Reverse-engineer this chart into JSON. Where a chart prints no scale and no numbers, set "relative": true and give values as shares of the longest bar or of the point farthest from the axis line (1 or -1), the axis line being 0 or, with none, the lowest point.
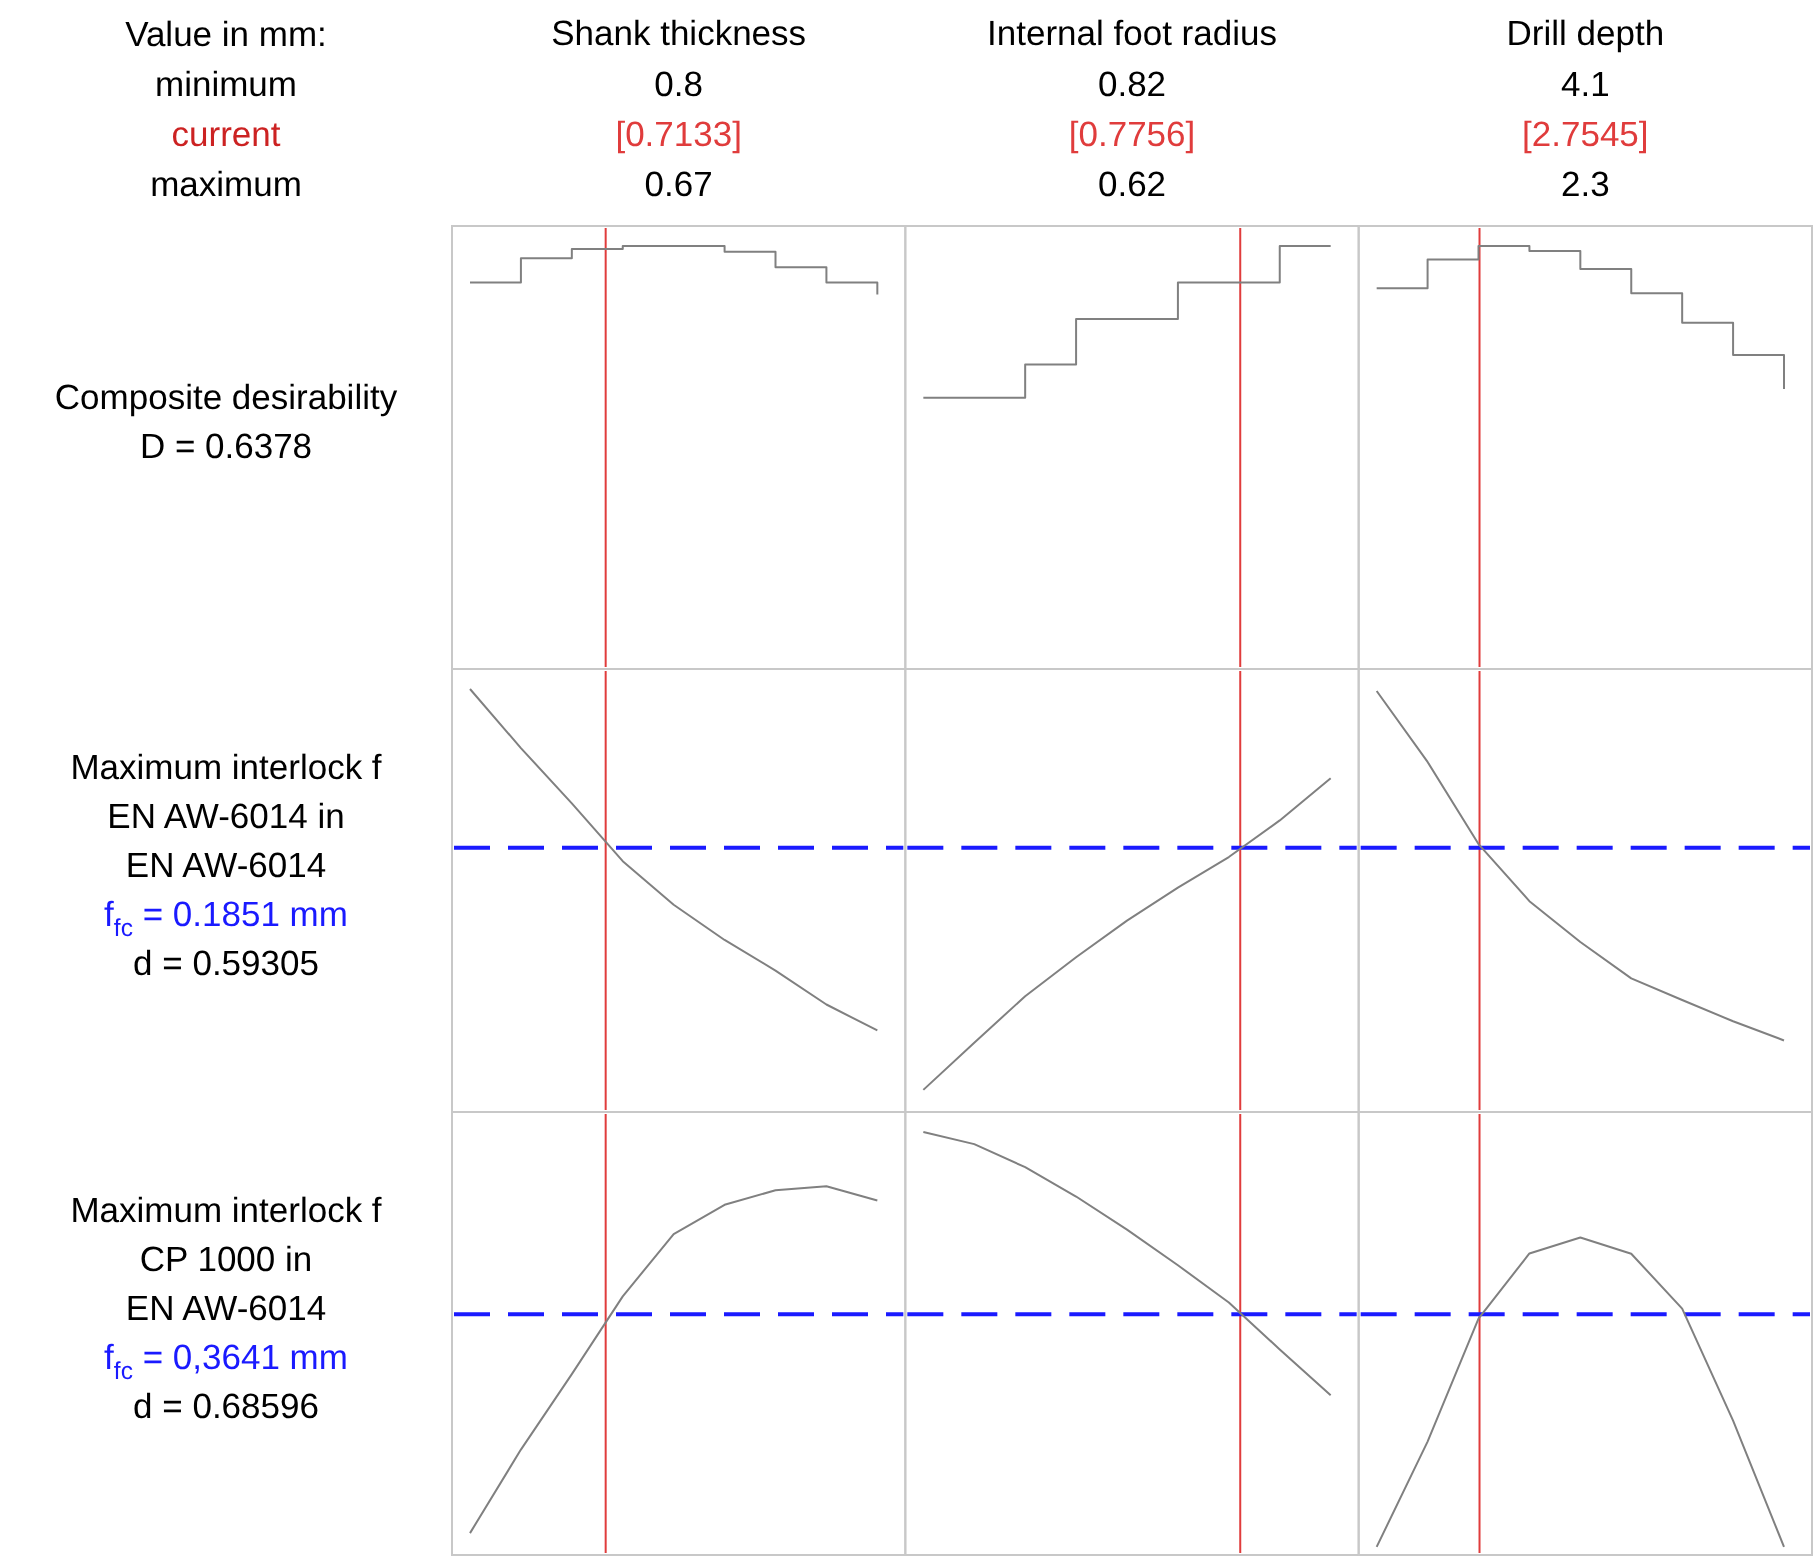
{
  "chart_data": [
    {
      "type": "other",
      "annotations": [
        "Value in mm:",
        "minimum",
        "current",
        "maximum"
      ]
    },
    {
      "type": "other",
      "title": "Shank thickness",
      "annotations": [
        "0.8",
        "[0.7133]",
        "0.67"
      ]
    },
    {
      "type": "other",
      "title": "Internal foot radius",
      "annotations": [
        "0.82",
        "[0.7756]",
        "0.62"
      ]
    },
    {
      "type": "other",
      "title": "Drill depth",
      "annotations": [
        "4.1",
        "[2.7545]",
        "2.3"
      ]
    },
    {
      "type": "step",
      "ylabel": "Composite desirability\nD = 0.6378",
      "relative": true,
      "color": "#808080",
      "categories": [
        null,
        null,
        null,
        null,
        null,
        null,
        null,
        null,
        null
      ],
      "values": [
        0.913,
        0.971,
        0.993,
        1,
        1,
        0.986,
        0.949,
        0.913,
        0.884
      ]
    },
    {
      "type": "step",
      "relative": true,
      "color": "#808080",
      "categories": [
        null,
        null,
        null,
        null,
        null,
        null,
        null,
        null,
        null
      ],
      "values": [
        0.638,
        0.638,
        0.717,
        0.826,
        0.826,
        0.913,
        0.913,
        1,
        1
      ]
    },
    {
      "type": "step",
      "relative": true,
      "color": "#808080",
      "categories": [
        null,
        null,
        null,
        null,
        null,
        null,
        null,
        null,
        null
      ],
      "values": [
        0.899,
        0.968,
        1,
        0.988,
        0.945,
        0.887,
        0.817,
        0.74,
        0.659
      ]
    },
    {
      "type": "line",
      "ylabel": "Maximum interlock f\nEN AW-6014 in\nEN AW-6014",
      "annotations": [
        "f$_{fc}$ = 0.1851 mm",
        "d = 0.59305"
      ],
      "relative": true,
      "color": "#808080",
      "categories": [
        null,
        null,
        null,
        null,
        null,
        null,
        null,
        null,
        null
      ],
      "values": [
        1,
        0.859,
        0.727,
        0.589,
        0.485,
        0.401,
        0.328,
        0.247,
        0.185
      ],
      "ref_lines": [
        {
          "axis": "y",
          "value": 0.621,
          "color": "#1a1aff",
          "line_style": "dashed"
        }
      ]
    },
    {
      "type": "line",
      "relative": true,
      "color": "#808080",
      "categories": [
        null,
        null,
        null,
        null,
        null,
        null,
        null,
        null,
        null
      ],
      "values": [
        0.055,
        0.198,
        0.339,
        0.457,
        0.568,
        0.668,
        0.761,
        0.872,
        1
      ],
      "ref_lines": [
        {
          "axis": "y",
          "value": 0.789,
          "color": "#1a1aff",
          "line_style": "dashed"
        }
      ]
    },
    {
      "type": "line",
      "relative": true,
      "color": "#808080",
      "categories": [
        null,
        null,
        null,
        null,
        null,
        null,
        null,
        null,
        null
      ],
      "values": [
        1,
        0.83,
        0.633,
        0.496,
        0.398,
        0.311,
        0.259,
        0.208,
        0.162
      ],
      "ref_lines": [
        {
          "axis": "y",
          "value": 0.624,
          "color": "#1a1aff",
          "line_style": "dashed"
        }
      ]
    },
    {
      "type": "line",
      "ylabel": "Maximum interlock f\nCP 1000 in\nEN AW-6014",
      "annotations": [
        "f$_{fc}$ = 0,3641 mm",
        "d = 0.68596"
      ],
      "relative": true,
      "color": "#808080",
      "categories": [
        null,
        null,
        null,
        null,
        null,
        null,
        null,
        null,
        null
      ],
      "values": [
        0.049,
        0.278,
        0.485,
        0.698,
        0.869,
        0.949,
        0.989,
        1,
        0.961
      ],
      "ref_lines": [
        {
          "axis": "y",
          "value": 0.649,
          "color": "#1a1aff",
          "line_style": "dashed"
        }
      ]
    },
    {
      "type": "line",
      "relative": true,
      "color": "#808080",
      "categories": [
        null,
        null,
        null,
        null,
        null,
        null,
        null,
        null,
        null
      ],
      "values": [
        1,
        0.971,
        0.916,
        0.846,
        0.767,
        0.682,
        0.593,
        0.481,
        0.372
      ],
      "ref_lines": [
        {
          "axis": "y",
          "value": 0.565,
          "color": "#1a1aff",
          "line_style": "dashed"
        }
      ]
    },
    {
      "type": "line",
      "relative": true,
      "color": "#808080",
      "categories": [
        null,
        null,
        null,
        null,
        null,
        null,
        null,
        null,
        null
      ],
      "values": [
        0.013,
        0.349,
        0.741,
        0.949,
        1,
        0.948,
        0.773,
        0.416,
        0.013
      ],
      "ref_lines": [
        {
          "axis": "y",
          "value": 0.755,
          "color": "#1a1aff",
          "line_style": "dashed"
        }
      ]
    }
  ]
}
